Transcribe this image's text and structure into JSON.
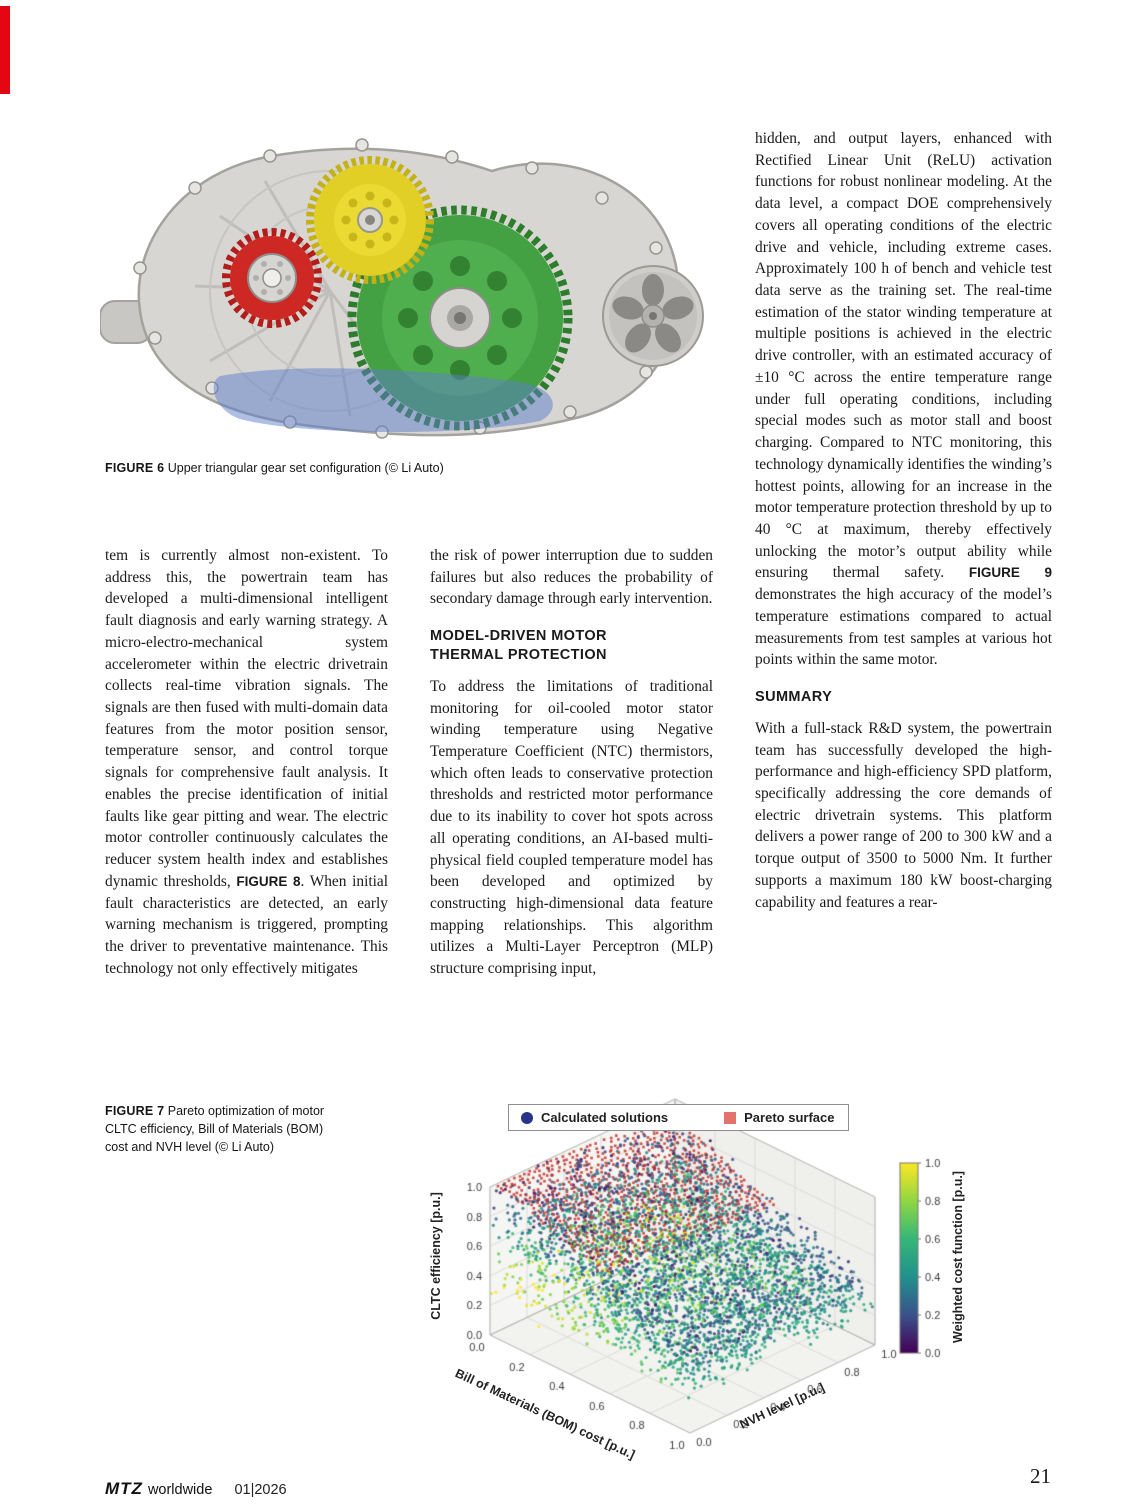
{
  "accent_color": "#e40613",
  "figure6": {
    "caption_label": "FIGURE 6",
    "caption_text": "Upper triangular gear set configuration (© Li Auto)"
  },
  "figure7": {
    "caption_label": "FIGURE 7",
    "caption_text": "Pareto optimization of motor CLTC efficiency, Bill of Materials (BOM) cost and NVH level (© Li Auto)"
  },
  "article": {
    "left_column": {
      "paragraph": [
        {
          "t": "tem is currently almost non-existent. To address this, the powertrain team has developed a multi-dimensional intelligent fault diagnosis and early warning strategy. A micro-electro-mechanical system accelerometer within the electric drivetrain collects real-time vibration signals. The signals are then fused with multi-domain data features from the motor position sensor, temperature sensor, and control torque signals for comprehensive fault analysis. It enables the precise identification of initial faults like gear pitting and wear. The electric motor controller continuously calculates the reducer system health index and establishes dynamic thresholds, "
        },
        {
          "t": "FIGURE 8",
          "b": true
        },
        {
          "t": ". When initial fault characteristics are detected, an early warning mechanism is triggered, prompting the driver to preventative maintenance. This technology not only effectively mitigates"
        }
      ]
    },
    "middle_column": {
      "paragraph1": "the risk of power interruption due to sudden failures but also reduces the probability of secondary damage through early intervention.",
      "heading": "MODEL-DRIVEN MOTOR THERMAL PROTECTION",
      "paragraph2": "To address the limitations of traditional monitoring for oil-cooled motor stator winding temperature using Negative Temperature Coefficient (NTC) thermistors, which often leads to conservative protection thresholds and restricted motor performance due to its inability to cover hot spots across all operating conditions, an AI-based multi-physical field coupled temperature model has been developed and optimized by constructing high-dimensional data feature mapping relationships. This algorithm utilizes a Multi-Layer Perceptron (MLP) structure comprising input,"
    },
    "right_column": {
      "paragraph1": [
        {
          "t": "hidden, and output layers, enhanced with Rectified Linear Unit (ReLU) activation functions for robust nonlinear modeling. At the data level, a compact DOE comprehensively covers all operating conditions of the electric drive and vehicle, including extreme cases. Approximately 100 h of bench and vehicle test data serve as the training set. The real-time estimation of the stator winding temperature at multiple positions is achieved in the electric drive controller, with an estimated accuracy of ±10 °C across the entire temperature range under full operating conditions, including special modes such as motor stall and boost charging. Compared to NTC monitoring, this technology dynamically identifies the winding’s hottest points, allowing for an increase in the motor temperature protection threshold by up to 40 °C at maximum, thereby effectively unlocking the motor’s output ability while ensuring thermal safety. "
        },
        {
          "t": "FIGURE 9",
          "b": true
        },
        {
          "t": " demonstrates the high accuracy of the model’s temperature estimations compared to actual measurements from test samples at various hot points within the same motor."
        }
      ],
      "heading": "SUMMARY",
      "paragraph2": "With a full-stack R&D system, the powertrain team has successfully developed the high-performance and high-efficiency SPD platform, specifically addressing the core demands of electric drivetrain systems. This platform delivers a power range of 200 to 300 kW and a torque output of 3500 to 5000 Nm. It further supports a maximum 180 kW boost-charging capability and features a rear-"
    }
  },
  "chart_data": {
    "type": "scatter",
    "projection": "3d",
    "legend": [
      {
        "label": "Calculated solutions",
        "color": "#28348c",
        "marker": "circle"
      },
      {
        "label": "Pareto surface",
        "color": "#e2746d",
        "marker": "square"
      }
    ],
    "surface_point_color": "#c63a32",
    "axes": {
      "x": {
        "label": "Bill of Materials (BOM) cost [p.u.]",
        "range": [
          0,
          1
        ],
        "ticks": [
          0.0,
          0.2,
          0.4,
          0.6,
          0.8,
          1.0
        ]
      },
      "y": {
        "label": "NVH level [p.u.]",
        "range": [
          0,
          1
        ],
        "ticks": [
          0.0,
          0.2,
          0.4,
          0.6,
          0.8,
          1.0
        ]
      },
      "z": {
        "label": "CLTC efficiency [p.u.]",
        "range": [
          0,
          1
        ],
        "ticks": [
          0.0,
          0.2,
          0.4,
          0.6,
          0.8,
          1.0
        ]
      }
    },
    "colorbar": {
      "label": "Weighted cost function [p.u.]",
      "range": [
        0,
        1
      ],
      "ticks": [
        0.0,
        0.2,
        0.4,
        0.6,
        0.8,
        1.0
      ],
      "stops": [
        "#440154",
        "#3b528b",
        "#21918c",
        "#35b779",
        "#90d743",
        "#fde725"
      ]
    },
    "grid": true,
    "point_cloud": {
      "description": "Dense cloud of calculated design solutions spanning the full BOM-cost and NVH ranges with CLTC efficiency from ~0.2 up to 1.0, colored by weighted cost function (dark blue near the Pareto surface, green to yellow at the cloud fringes). A red Pareto surface sheet slopes from maximum efficiency at low BOM cost down toward lower efficiency at higher BOM cost and NVH level.",
      "n_points_rendered": 4000,
      "seed": 7
    }
  },
  "footer": {
    "brand": "MTZ",
    "brand_suffix": "worldwide",
    "issue": "01|2026",
    "page_number": "21"
  }
}
